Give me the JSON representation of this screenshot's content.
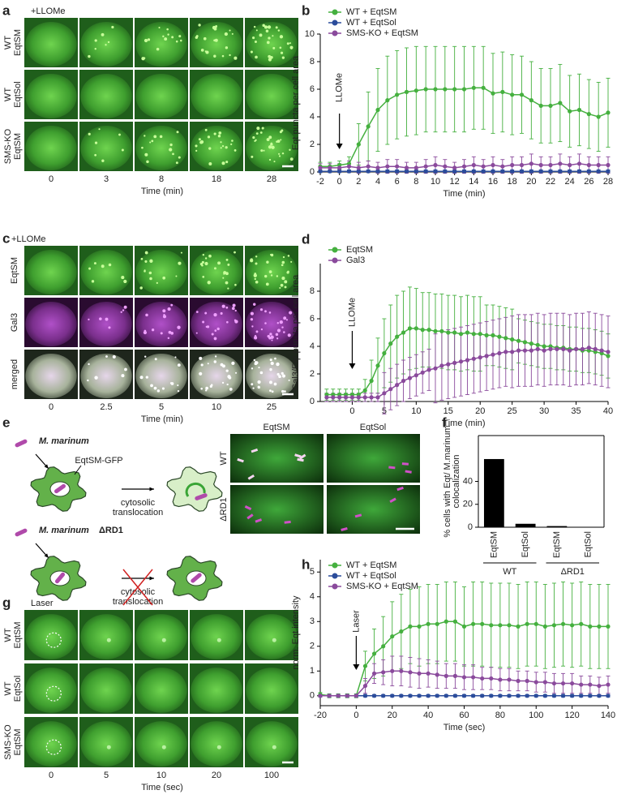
{
  "panels": {
    "a": {
      "letter": "a",
      "treatment": "+LLOMe",
      "rows": [
        [
          "WT",
          "EqtSM"
        ],
        [
          "WT",
          "EqtSol"
        ],
        [
          "SMS-KO",
          "EqtSM"
        ]
      ],
      "times": [
        0,
        3,
        8,
        18,
        28
      ],
      "xlabel": "Time (min)"
    },
    "c": {
      "letter": "c",
      "treatment": "+LLOMe",
      "rows": [
        [
          "EqtSM"
        ],
        [
          "Gal3"
        ],
        [
          "merged"
        ]
      ],
      "times": [
        0,
        2.5,
        5,
        10,
        25
      ],
      "xlabel": "Time (min)"
    },
    "e": {
      "letter": "e",
      "bacterium": "M. marinum",
      "probe": "EqtSM-GFP",
      "translocation": [
        "cytosolic",
        "translocation"
      ],
      "mutant": [
        "M. marinum",
        "ΔRD1"
      ],
      "translocation_blocked": [
        "cytosolic",
        "translocation"
      ],
      "columns": [
        "EqtSM",
        "EqtSol"
      ],
      "rows": [
        "WT",
        "ΔRD1"
      ]
    },
    "g": {
      "letter": "g",
      "treatment": "Laser",
      "rows": [
        [
          "WT",
          "EqtSM"
        ],
        [
          "WT",
          "EqtSol"
        ],
        [
          "SMS-KO",
          "EqtSM"
        ]
      ],
      "times": [
        0,
        5,
        10,
        20,
        100
      ],
      "xlabel": "Time (sec)"
    }
  },
  "chart_data": [
    {
      "type": "line",
      "panel": "b",
      "xlabel": "Time (min)",
      "ylabel": "Eqt puncta per cell area",
      "annotation": {
        "text": "LLOMe",
        "x": 0
      },
      "xlim": [
        -2,
        28
      ],
      "xticks": [
        -2,
        0,
        2,
        4,
        6,
        8,
        10,
        12,
        14,
        16,
        18,
        20,
        22,
        24,
        26,
        28
      ],
      "ylim": [
        0,
        10
      ],
      "yticks": [
        0,
        2,
        4,
        6,
        8,
        10
      ],
      "x": [
        -2,
        -1,
        0,
        1,
        2,
        3,
        4,
        5,
        6,
        7,
        8,
        9,
        10,
        11,
        12,
        13,
        14,
        15,
        16,
        17,
        18,
        19,
        20,
        21,
        22,
        23,
        24,
        25,
        26,
        27,
        28
      ],
      "series": [
        {
          "name": "WT + EqtSM",
          "color": "#45b03f",
          "values": [
            0.4,
            0.4,
            0.5,
            0.6,
            2.0,
            3.3,
            4.5,
            5.2,
            5.6,
            5.8,
            5.9,
            6.0,
            6.0,
            6.0,
            6.0,
            6.0,
            6.1,
            6.1,
            5.7,
            5.8,
            5.6,
            5.6,
            5.2,
            4.8,
            4.8,
            5.0,
            4.4,
            4.5,
            4.2,
            4.0,
            4.3
          ],
          "errors": [
            0.3,
            0.3,
            0.3,
            0.5,
            1.5,
            2.5,
            3.0,
            3.2,
            3.2,
            3.2,
            3.2,
            3.1,
            3.1,
            3.1,
            3.1,
            3.1,
            3.0,
            3.0,
            2.9,
            2.9,
            2.9,
            2.8,
            2.8,
            2.7,
            2.7,
            2.8,
            2.6,
            2.6,
            2.5,
            2.5,
            2.5
          ]
        },
        {
          "name": "WT + EqtSol",
          "color": "#2b4c9b",
          "values": [
            0.05,
            0.05,
            0.05,
            0.05,
            0.05,
            0.05,
            0.05,
            0.05,
            0.05,
            0.05,
            0.05,
            0.05,
            0.05,
            0.05,
            0.05,
            0.05,
            0.05,
            0.05,
            0.05,
            0.05,
            0.05,
            0.05,
            0.05,
            0.05,
            0.05,
            0.05,
            0.05,
            0.05,
            0.05,
            0.05,
            0.05
          ],
          "errors": [
            0.1,
            0.1,
            0.1,
            0.1,
            0.1,
            0.1,
            0.1,
            0.1,
            0.1,
            0.1,
            0.1,
            0.1,
            0.1,
            0.1,
            0.1,
            0.1,
            0.1,
            0.1,
            0.1,
            0.1,
            0.1,
            0.1,
            0.1,
            0.1,
            0.1,
            0.1,
            0.1,
            0.1,
            0.1,
            0.1,
            0.1
          ]
        },
        {
          "name": "SMS-KO + EqtSM",
          "color": "#8a4a9c",
          "values": [
            0.3,
            0.3,
            0.3,
            0.4,
            0.3,
            0.4,
            0.3,
            0.4,
            0.4,
            0.3,
            0.3,
            0.4,
            0.5,
            0.4,
            0.3,
            0.4,
            0.5,
            0.4,
            0.5,
            0.4,
            0.5,
            0.5,
            0.6,
            0.5,
            0.5,
            0.6,
            0.5,
            0.6,
            0.5,
            0.5,
            0.5
          ],
          "errors": [
            0.3,
            0.3,
            0.3,
            0.4,
            0.4,
            0.4,
            0.4,
            0.5,
            0.5,
            0.4,
            0.4,
            0.5,
            0.6,
            0.5,
            0.4,
            0.5,
            0.6,
            0.5,
            0.6,
            0.5,
            0.6,
            0.6,
            0.7,
            0.6,
            0.6,
            0.7,
            0.6,
            0.7,
            0.6,
            0.6,
            0.6
          ]
        }
      ]
    },
    {
      "type": "line",
      "panel": "d",
      "xlabel": "Time (min)",
      "ylabel": "Gal3/Eqt puncta per cell area",
      "annotation": {
        "text": "LLOMe",
        "x": 0
      },
      "xlim": [
        -5,
        40
      ],
      "xticks": [
        0,
        5,
        10,
        15,
        20,
        25,
        30,
        35,
        40
      ],
      "ylim": [
        0,
        10
      ],
      "yticks": [
        0,
        2,
        4,
        6,
        8
      ],
      "x": [
        -4,
        -3,
        -2,
        -1,
        0,
        1,
        2,
        3,
        4,
        5,
        6,
        7,
        8,
        9,
        10,
        11,
        12,
        13,
        14,
        15,
        16,
        17,
        18,
        19,
        20,
        21,
        22,
        23,
        24,
        25,
        26,
        27,
        28,
        29,
        30,
        31,
        32,
        33,
        34,
        35,
        36,
        37,
        38,
        39,
        40
      ],
      "series": [
        {
          "name": "EqtSM",
          "color": "#45b03f",
          "values": [
            0.5,
            0.5,
            0.5,
            0.5,
            0.5,
            0.5,
            0.8,
            1.5,
            2.6,
            3.5,
            4.2,
            4.7,
            5.0,
            5.3,
            5.3,
            5.2,
            5.2,
            5.1,
            5.1,
            5.0,
            5.0,
            4.9,
            5.0,
            4.9,
            4.9,
            4.8,
            4.8,
            4.7,
            4.6,
            4.5,
            4.4,
            4.3,
            4.2,
            4.1,
            4.0,
            4.0,
            3.9,
            3.9,
            3.8,
            3.8,
            3.7,
            3.7,
            3.6,
            3.5,
            3.3
          ],
          "errors": [
            0.4,
            0.4,
            0.4,
            0.4,
            0.4,
            0.4,
            0.8,
            1.5,
            2.0,
            2.5,
            2.8,
            3.0,
            3.0,
            3.0,
            2.9,
            2.7,
            2.7,
            2.7,
            2.7,
            2.7,
            2.7,
            2.7,
            2.7,
            2.7,
            2.7,
            2.2,
            2.2,
            2.2,
            2.2,
            2.2,
            1.6,
            1.6,
            1.6,
            1.6,
            1.6,
            1.6,
            1.6,
            1.6,
            1.6,
            1.6,
            1.6,
            1.6,
            1.6,
            1.6,
            1.6
          ]
        },
        {
          "name": "Gal3",
          "color": "#8a4a9c",
          "values": [
            0.3,
            0.3,
            0.3,
            0.3,
            0.3,
            0.3,
            0.3,
            0.3,
            0.3,
            0.6,
            0.9,
            1.2,
            1.5,
            1.7,
            1.9,
            2.1,
            2.3,
            2.4,
            2.6,
            2.7,
            2.8,
            2.9,
            3.0,
            3.1,
            3.2,
            3.3,
            3.4,
            3.5,
            3.6,
            3.6,
            3.7,
            3.7,
            3.7,
            3.8,
            3.7,
            3.8,
            3.8,
            3.8,
            3.7,
            3.8,
            3.8,
            3.9,
            3.8,
            3.7,
            3.6
          ],
          "errors": [
            0.3,
            0.3,
            0.3,
            0.3,
            0.3,
            0.3,
            0.3,
            0.3,
            0.3,
            1.5,
            1.5,
            1.5,
            1.5,
            1.5,
            1.5,
            1.5,
            1.5,
            2.5,
            2.5,
            2.5,
            2.5,
            2.5,
            2.5,
            2.5,
            2.5,
            2.5,
            2.5,
            2.5,
            2.5,
            2.6,
            2.6,
            2.6,
            2.6,
            2.6,
            2.6,
            2.6,
            2.6,
            2.6,
            2.6,
            2.6,
            2.6,
            2.6,
            2.6,
            2.6,
            2.6
          ]
        }
      ]
    },
    {
      "type": "bar",
      "panel": "f",
      "ylabel": [
        "% cells with Eqt/ M.marinum",
        "colocalization"
      ],
      "color": "#000000",
      "categories": [
        "EqtSM",
        "EqtSol",
        "EqtSM",
        "EqtSol"
      ],
      "groups": [
        "WT",
        "ΔRD1"
      ],
      "values": [
        59.5,
        3,
        1,
        0.2
      ],
      "ylim": [
        0,
        80
      ],
      "yticks": [
        0,
        20,
        40
      ]
    },
    {
      "type": "line",
      "panel": "h",
      "xlabel": "Time (sec)",
      "ylabel": "norm. Eqt intensity",
      "annotation": {
        "text": "Laser",
        "x": 0
      },
      "xlim": [
        -20,
        140
      ],
      "xticks": [
        -20,
        0,
        20,
        40,
        60,
        80,
        100,
        120,
        140
      ],
      "ylim": [
        -0.4,
        5.5
      ],
      "yticks": [
        0,
        1,
        2,
        3,
        4,
        5
      ],
      "x": [
        -20,
        -15,
        -10,
        -5,
        0,
        5,
        10,
        15,
        20,
        25,
        30,
        35,
        40,
        45,
        50,
        55,
        60,
        65,
        70,
        75,
        80,
        85,
        90,
        95,
        100,
        105,
        110,
        115,
        120,
        125,
        130,
        135,
        140
      ],
      "series": [
        {
          "name": "WT + EqtSM",
          "color": "#45b03f",
          "values": [
            0.05,
            0,
            0,
            0,
            0,
            1.2,
            1.7,
            2.0,
            2.4,
            2.6,
            2.8,
            2.8,
            2.9,
            2.9,
            3.0,
            3.0,
            2.8,
            2.9,
            2.9,
            2.85,
            2.85,
            2.85,
            2.8,
            2.9,
            2.9,
            2.8,
            2.85,
            2.9,
            2.85,
            2.9,
            2.8,
            2.8,
            2.8
          ],
          "errors": [
            0.08,
            0.08,
            0.08,
            0.08,
            0.08,
            0.6,
            1.0,
            1.2,
            1.4,
            1.5,
            1.5,
            1.6,
            1.6,
            1.6,
            1.6,
            1.6,
            1.6,
            1.7,
            1.7,
            1.7,
            1.7,
            1.7,
            1.7,
            1.7,
            1.7,
            1.7,
            1.7,
            1.7,
            1.7,
            1.7,
            1.7,
            1.7,
            1.7
          ]
        },
        {
          "name": "WT + EqtSol",
          "color": "#2b4c9b",
          "values": [
            0,
            0,
            0,
            0,
            0,
            0,
            0,
            0,
            0,
            0,
            0,
            0,
            0,
            0,
            0,
            0,
            0,
            0,
            0,
            0,
            0,
            0,
            0,
            0,
            0,
            0,
            0,
            0,
            0,
            0,
            0,
            0,
            0
          ],
          "errors": [
            0.05,
            0.05,
            0.05,
            0.05,
            0.05,
            0.05,
            0.05,
            0.05,
            0.05,
            0.05,
            0.05,
            0.05,
            0.05,
            0.05,
            0.05,
            0.05,
            0.05,
            0.05,
            0.05,
            0.05,
            0.05,
            0.05,
            0.05,
            0.05,
            0.05,
            0.05,
            0.05,
            0.05,
            0.05,
            0.05,
            0.05,
            0.05,
            0.05
          ]
        },
        {
          "name": "SMS-KO + EqtSM",
          "color": "#8a4a9c",
          "values": [
            0,
            0,
            0,
            0,
            0,
            0.4,
            0.9,
            0.95,
            1.0,
            1.0,
            0.95,
            0.9,
            0.9,
            0.85,
            0.8,
            0.8,
            0.75,
            0.75,
            0.7,
            0.7,
            0.65,
            0.65,
            0.6,
            0.6,
            0.55,
            0.55,
            0.5,
            0.5,
            0.5,
            0.45,
            0.45,
            0.4,
            0.45
          ],
          "errors": [
            0.05,
            0.05,
            0.05,
            0.05,
            0.05,
            0.3,
            0.4,
            0.5,
            0.6,
            0.6,
            0.6,
            0.6,
            0.55,
            0.55,
            0.5,
            0.5,
            0.5,
            0.5,
            0.45,
            0.45,
            0.45,
            0.45,
            0.4,
            0.4,
            0.4,
            0.4,
            0.4,
            0.4,
            0.4,
            0.35,
            0.35,
            0.35,
            0.35
          ]
        }
      ]
    }
  ]
}
